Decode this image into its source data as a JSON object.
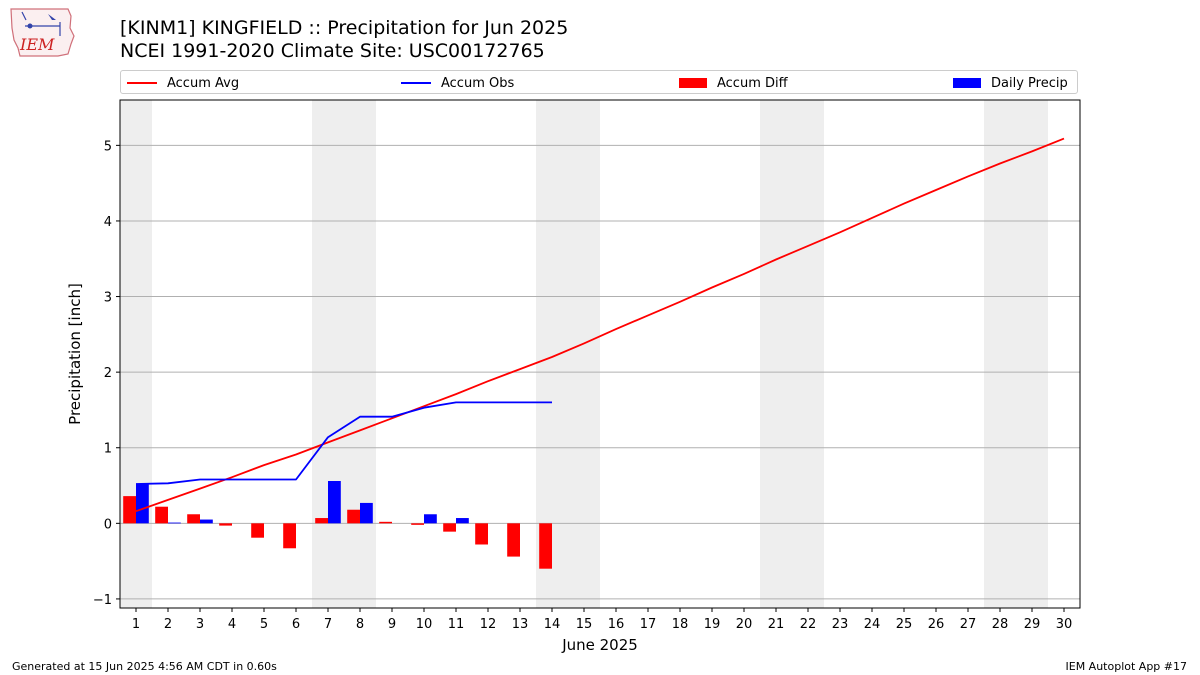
{
  "header": {
    "title_line1": "[KINM1] KINGFIELD :: Precipitation for Jun 2025",
    "title_line2": "NCEI 1991-2020 Climate Site: USC00172765"
  },
  "logo": {
    "text": "IEM"
  },
  "footer": {
    "left": "Generated at 15 Jun 2025 4:56 AM CDT in 0.60s",
    "right": "IEM Autoplot App #17"
  },
  "colors": {
    "avg": "#ff0000",
    "obs": "#0000ff",
    "diff": "#ff0000",
    "daily": "#0000ff",
    "weekend": "#eeeeee",
    "grid": "#b0b0b0"
  },
  "chart_data": {
    "type": "bar",
    "xlabel": "June 2025",
    "ylabel": "Precipitation [inch]",
    "xlim": [
      0.5,
      30.5
    ],
    "ylim": [
      -1.12,
      5.6
    ],
    "yticks": [
      -1,
      0,
      1,
      2,
      3,
      4,
      5
    ],
    "xticks": [
      1,
      2,
      3,
      4,
      5,
      6,
      7,
      8,
      9,
      10,
      11,
      12,
      13,
      14,
      15,
      16,
      17,
      18,
      19,
      20,
      21,
      22,
      23,
      24,
      25,
      26,
      27,
      28,
      29,
      30
    ],
    "grid": "y",
    "legend_position": "top",
    "weekend_days": [
      1,
      7,
      8,
      14,
      15,
      21,
      22,
      28,
      29
    ],
    "series": [
      {
        "name": "Accum Avg",
        "type": "line",
        "x": [
          1,
          2,
          3,
          4,
          5,
          6,
          7,
          8,
          9,
          10,
          11,
          12,
          13,
          14,
          15,
          16,
          17,
          18,
          19,
          20,
          21,
          22,
          23,
          24,
          25,
          26,
          27,
          28,
          29,
          30
        ],
        "values": [
          0.16,
          0.31,
          0.46,
          0.61,
          0.77,
          0.91,
          1.07,
          1.23,
          1.39,
          1.55,
          1.71,
          1.88,
          2.04,
          2.2,
          2.38,
          2.57,
          2.75,
          2.93,
          3.12,
          3.3,
          3.49,
          3.67,
          3.85,
          4.04,
          4.23,
          4.41,
          4.59,
          4.76,
          4.92,
          5.09
        ]
      },
      {
        "name": "Accum Obs",
        "type": "line",
        "x": [
          1,
          2,
          3,
          4,
          5,
          6,
          7,
          8,
          9,
          10,
          11,
          12,
          13,
          14
        ],
        "values": [
          0.52,
          0.53,
          0.58,
          0.58,
          0.58,
          0.58,
          1.14,
          1.41,
          1.41,
          1.53,
          1.6,
          1.6,
          1.6,
          1.6
        ]
      },
      {
        "name": "Accum Diff",
        "type": "bar",
        "x": [
          1,
          2,
          3,
          4,
          5,
          6,
          7,
          8,
          9,
          10,
          11,
          12,
          13,
          14
        ],
        "values": [
          0.36,
          0.22,
          0.12,
          -0.03,
          -0.19,
          -0.33,
          0.07,
          0.18,
          0.02,
          -0.02,
          -0.11,
          -0.28,
          -0.44,
          -0.6
        ]
      },
      {
        "name": "Daily Precip",
        "type": "bar",
        "x": [
          1,
          2,
          3,
          4,
          5,
          6,
          7,
          8,
          9,
          10,
          11,
          12,
          13,
          14
        ],
        "values": [
          0.52,
          0.01,
          0.05,
          0,
          0,
          0,
          0.56,
          0.27,
          0,
          0.12,
          0.07,
          0,
          0,
          0
        ]
      }
    ]
  }
}
